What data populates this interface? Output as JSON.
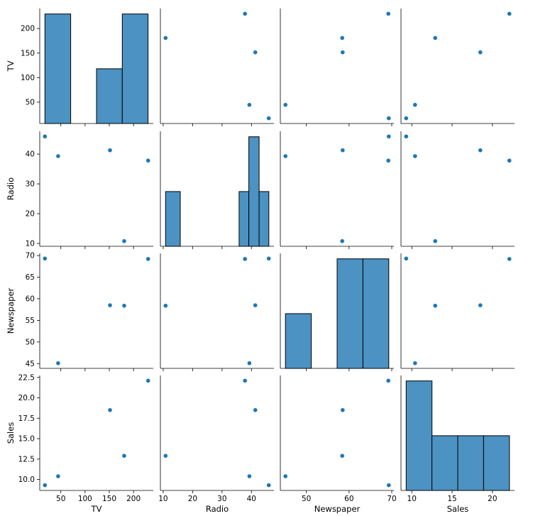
{
  "chart_data": {
    "type": "pairplot",
    "variables": [
      "TV",
      "Radio",
      "Newspaper",
      "Sales"
    ],
    "rows": [
      {
        "TV": 230.1,
        "Radio": 37.8,
        "Newspaper": 69.2,
        "Sales": 22.1
      },
      {
        "TV": 44.5,
        "Radio": 39.3,
        "Newspaper": 45.1,
        "Sales": 10.4
      },
      {
        "TV": 17.2,
        "Radio": 45.9,
        "Newspaper": 69.3,
        "Sales": 9.3
      },
      {
        "TV": 151.5,
        "Radio": 41.3,
        "Newspaper": 58.5,
        "Sales": 18.5
      },
      {
        "TV": 180.8,
        "Radio": 10.8,
        "Newspaper": 58.4,
        "Sales": 12.9
      }
    ],
    "axes": {
      "TV": {
        "lim": [
          6.5,
          240.8
        ],
        "ticks": [
          50,
          100,
          150,
          200
        ],
        "tick_labels": [
          "50",
          "100",
          "150",
          "200"
        ]
      },
      "Radio": {
        "lim": [
          9.05,
          47.65
        ],
        "ticks": [
          10,
          20,
          30,
          40
        ],
        "tick_labels": [
          "10",
          "20",
          "30",
          "40"
        ]
      },
      "Newspaper": {
        "lim": [
          43.9,
          70.5
        ],
        "ticks": [
          45,
          50,
          55,
          60,
          65,
          70
        ],
        "tick_labels": [
          "45",
          "50",
          "55",
          "60",
          "65",
          "70"
        ]
      },
      "Sales": {
        "lim": [
          8.66,
          22.74
        ],
        "ticks": [
          10.0,
          12.5,
          15.0,
          17.5,
          20.0,
          22.5
        ],
        "tick_labels": [
          "10.0",
          "12.5",
          "15.0",
          "17.5",
          "20.0",
          "22.5"
        ]
      }
    },
    "x_tick_labels": {
      "TV": [
        "50",
        "100",
        "150",
        "200"
      ],
      "Radio": [
        "10",
        "20",
        "30",
        "40"
      ],
      "Newspaper": [
        "50",
        "60",
        "70"
      ],
      "Sales": [
        "10",
        "15",
        "20"
      ]
    },
    "x_ticks": {
      "TV": [
        50,
        100,
        150,
        200
      ],
      "Radio": [
        10,
        20,
        30,
        40
      ],
      "Newspaper": [
        50,
        60,
        70
      ],
      "Sales": [
        10,
        15,
        20
      ]
    },
    "histograms": {
      "TV": {
        "edges": [
          17.2,
          70.42,
          123.65,
          176.88,
          230.1
        ],
        "counts": [
          2,
          0,
          1,
          2
        ]
      },
      "Radio": {
        "edges": [
          10.8,
          15.8,
          20.8,
          25.8,
          30.8,
          35.8,
          39.1,
          42.6,
          45.9
        ],
        "counts": [
          1,
          0,
          0,
          0,
          0,
          1,
          2,
          1
        ]
      },
      "Newspaper": {
        "edges": [
          45.1,
          51.15,
          57.2,
          63.25,
          69.3
        ],
        "counts": [
          1,
          0,
          2,
          2
        ]
      },
      "Sales": {
        "edges": [
          9.3,
          12.5,
          15.7,
          18.9,
          22.1
        ],
        "counts": [
          2,
          1,
          1,
          1
        ]
      }
    },
    "point_color": "#1f77b4",
    "bar_color": "#4c92c3",
    "grid": false,
    "legend": "none"
  }
}
